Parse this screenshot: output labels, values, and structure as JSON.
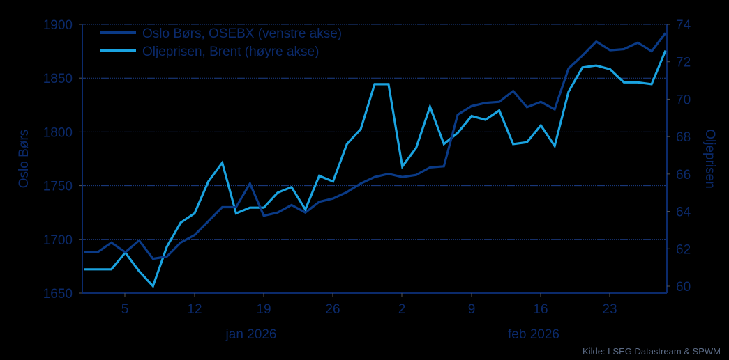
{
  "chart_data": {
    "type": "line",
    "title": "",
    "legend": {
      "position": "top-left-inside",
      "entries": [
        "Oslo Børs, OSEBX (venstre akse)",
        "Oljeprisen, Brent (høyre akse)"
      ]
    },
    "ylabel_left": "Oslo Børs",
    "ylabel_right": "Oljeprisen",
    "ylim_left": [
      1650,
      1900
    ],
    "yticks_left": [
      1650,
      1700,
      1750,
      1800,
      1850,
      1900
    ],
    "ylim_right": [
      60,
      74
    ],
    "yticks_right": [
      60,
      62,
      64,
      66,
      68,
      70,
      72,
      74
    ],
    "xtick_labels": [
      "5",
      "12",
      "19",
      "26",
      "2",
      "9",
      "16",
      "23"
    ],
    "xgroup_labels": [
      "jan 2026",
      "feb 2026"
    ],
    "grid": "horizontal dotted",
    "source": "Kilde: LSEG Datastream & SPWM",
    "n_points": 43,
    "series": [
      {
        "name": "Oslo Børs, OSEBX (venstre akse)",
        "axis": "left",
        "color": "#0a3a86",
        "values": [
          1688,
          1688,
          1697,
          1688,
          1699,
          1682,
          1684,
          1697,
          1704,
          1717,
          1730,
          1730,
          1752,
          1722,
          1725,
          1732,
          1725,
          1735,
          1738,
          1744,
          1752,
          1758,
          1761,
          1758,
          1760,
          1767,
          1768,
          1816,
          1824,
          1827,
          1828,
          1838,
          1823,
          1828,
          1821,
          1859,
          1871,
          1884,
          1876,
          1877,
          1883,
          1875,
          1892
        ]
      },
      {
        "name": "Oljeprisen, Brent (høyre akse)",
        "axis": "right",
        "color": "#1aa3e0",
        "values": [
          60.9,
          60.9,
          60.9,
          61.8,
          60.8,
          60.0,
          62.1,
          63.4,
          63.9,
          65.6,
          66.6,
          63.9,
          64.2,
          64.2,
          65.0,
          65.3,
          64.1,
          65.9,
          65.6,
          67.6,
          68.4,
          70.8,
          70.8,
          66.4,
          67.4,
          69.6,
          67.6,
          68.2,
          69.1,
          68.9,
          69.4,
          67.6,
          67.7,
          68.6,
          67.5,
          70.4,
          71.7,
          71.8,
          71.6,
          70.9,
          70.9,
          70.8,
          72.6
        ]
      }
    ]
  },
  "colors": {
    "background": "#000000",
    "axis": "#0b2a6b",
    "text": "#0b2a6b",
    "source_text": "#5b6b86"
  }
}
